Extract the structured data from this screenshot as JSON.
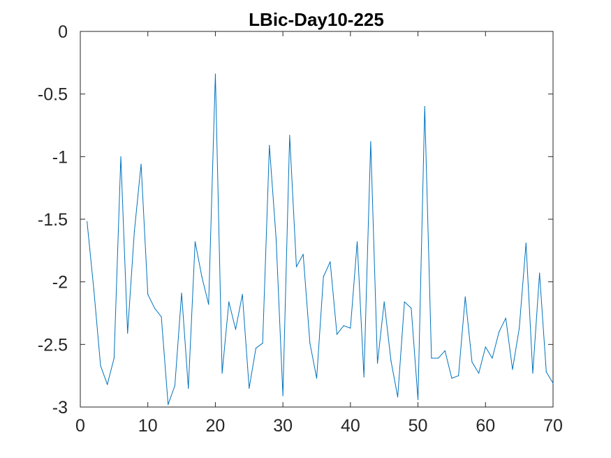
{
  "chart_data": {
    "type": "line",
    "title": "LBic-Day10-225",
    "xlabel": "",
    "ylabel": "",
    "xlim": [
      0,
      70
    ],
    "ylim": [
      -3,
      0
    ],
    "xticks": [
      0,
      10,
      20,
      30,
      40,
      50,
      60,
      70
    ],
    "yticks": [
      0,
      -0.5,
      -1,
      -1.5,
      -2,
      -2.5,
      -3
    ],
    "xtick_labels": [
      "0",
      "10",
      "20",
      "30",
      "40",
      "50",
      "60",
      "70"
    ],
    "ytick_labels": [
      "0",
      "-0.5",
      "-1",
      "-1.5",
      "-2",
      "-2.5",
      "-3"
    ],
    "grid": false,
    "box": true,
    "series": [
      {
        "color": "#0072BD",
        "x": [
          1,
          2,
          3,
          4,
          5,
          6,
          7,
          8,
          9,
          10,
          11,
          12,
          13,
          14,
          15,
          16,
          17,
          18,
          19,
          20,
          21,
          22,
          23,
          24,
          25,
          26,
          27,
          28,
          29,
          30,
          31,
          32,
          33,
          34,
          35,
          36,
          37,
          38,
          39,
          40,
          41,
          42,
          43,
          44,
          45,
          46,
          47,
          48,
          49,
          50,
          51,
          52,
          53,
          54,
          55,
          56,
          57,
          58,
          59,
          60,
          61,
          62,
          63,
          64,
          65,
          66,
          67,
          68,
          69,
          70
        ],
        "values": [
          -1.52,
          -2.06,
          -2.67,
          -2.82,
          -2.61,
          -1.0,
          -2.41,
          -1.6,
          -1.06,
          -2.1,
          -2.21,
          -2.28,
          -2.98,
          -2.83,
          -2.09,
          -2.85,
          -1.68,
          -1.96,
          -2.18,
          -0.34,
          -2.73,
          -2.16,
          -2.38,
          -2.1,
          -2.85,
          -2.53,
          -2.49,
          -0.91,
          -1.66,
          -2.91,
          -0.83,
          -1.88,
          -1.78,
          -2.49,
          -2.77,
          -1.96,
          -1.84,
          -2.42,
          -2.35,
          -2.37,
          -1.68,
          -2.76,
          -0.88,
          -2.65,
          -2.16,
          -2.63,
          -2.92,
          -2.16,
          -2.21,
          -2.94,
          -0.6,
          -2.61,
          -2.61,
          -2.55,
          -2.77,
          -2.75,
          -2.12,
          -2.64,
          -2.73,
          -2.52,
          -2.61,
          -2.4,
          -2.29,
          -2.7,
          -2.37,
          -1.69,
          -2.73,
          -1.93,
          -2.72,
          -2.81
        ]
      }
    ]
  }
}
